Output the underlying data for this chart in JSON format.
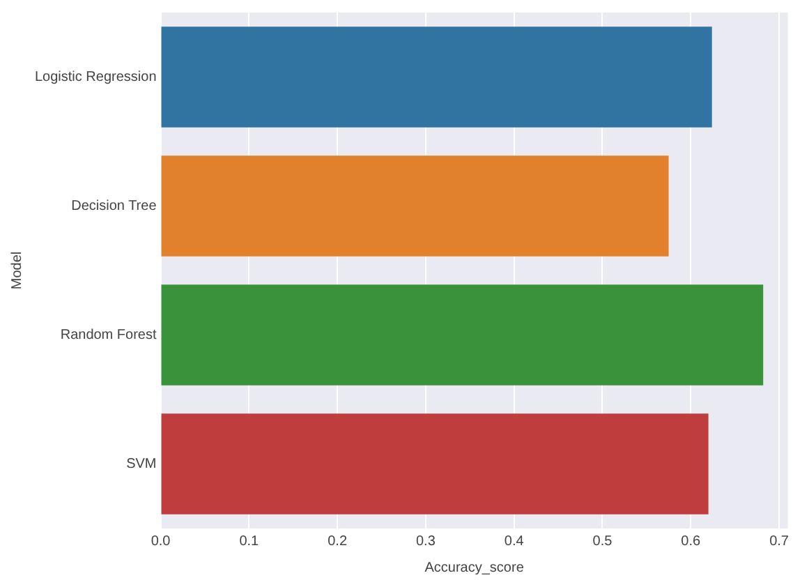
{
  "chart_data": {
    "type": "bar",
    "orientation": "horizontal",
    "xlabel": "Accuracy_score",
    "ylabel": "Model",
    "categories": [
      "Logistic Regression",
      "Decision Tree",
      "Random Forest",
      "SVM"
    ],
    "values": [
      0.624,
      0.575,
      0.682,
      0.62
    ],
    "colors": [
      "#3274a1",
      "#e1812c",
      "#3a923a",
      "#c03d3e"
    ],
    "xlim": [
      0,
      0.71
    ],
    "xticks": [
      {
        "value": 0,
        "label": "0.0"
      },
      0.1,
      0.2,
      0.3,
      0.4,
      0.5,
      0.6,
      0.7
    ],
    "grid": "x",
    "legend": false
  }
}
